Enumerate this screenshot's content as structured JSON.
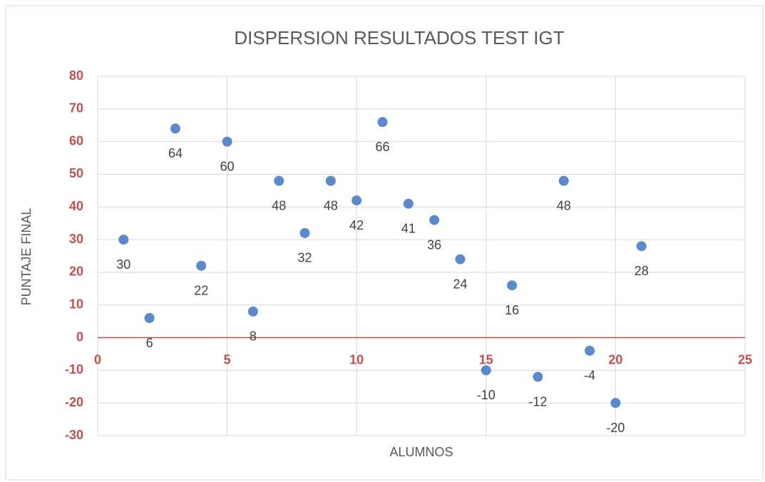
{
  "chart_data": {
    "type": "scatter",
    "title": "DISPERSION RESULTADOS TEST IGT",
    "xlabel": "ALUMNOS",
    "ylabel": "PUNTAJE FINAL",
    "x": [
      1,
      2,
      3,
      4,
      5,
      6,
      7,
      8,
      9,
      10,
      11,
      12,
      13,
      14,
      15,
      16,
      17,
      18,
      19,
      20,
      21
    ],
    "values": [
      30,
      6,
      64,
      22,
      60,
      8,
      48,
      32,
      48,
      42,
      66,
      41,
      36,
      24,
      -10,
      16,
      -12,
      48,
      -4,
      -20,
      28
    ],
    "color": "#5a8acb",
    "xlim": [
      0,
      25
    ],
    "xticks": [
      0,
      5,
      10,
      15,
      20,
      25
    ],
    "ylim": [
      -30,
      80
    ],
    "yticks": [
      -30,
      -20,
      -10,
      0,
      10,
      20,
      30,
      40,
      50,
      60,
      70,
      80
    ],
    "grid": true
  }
}
